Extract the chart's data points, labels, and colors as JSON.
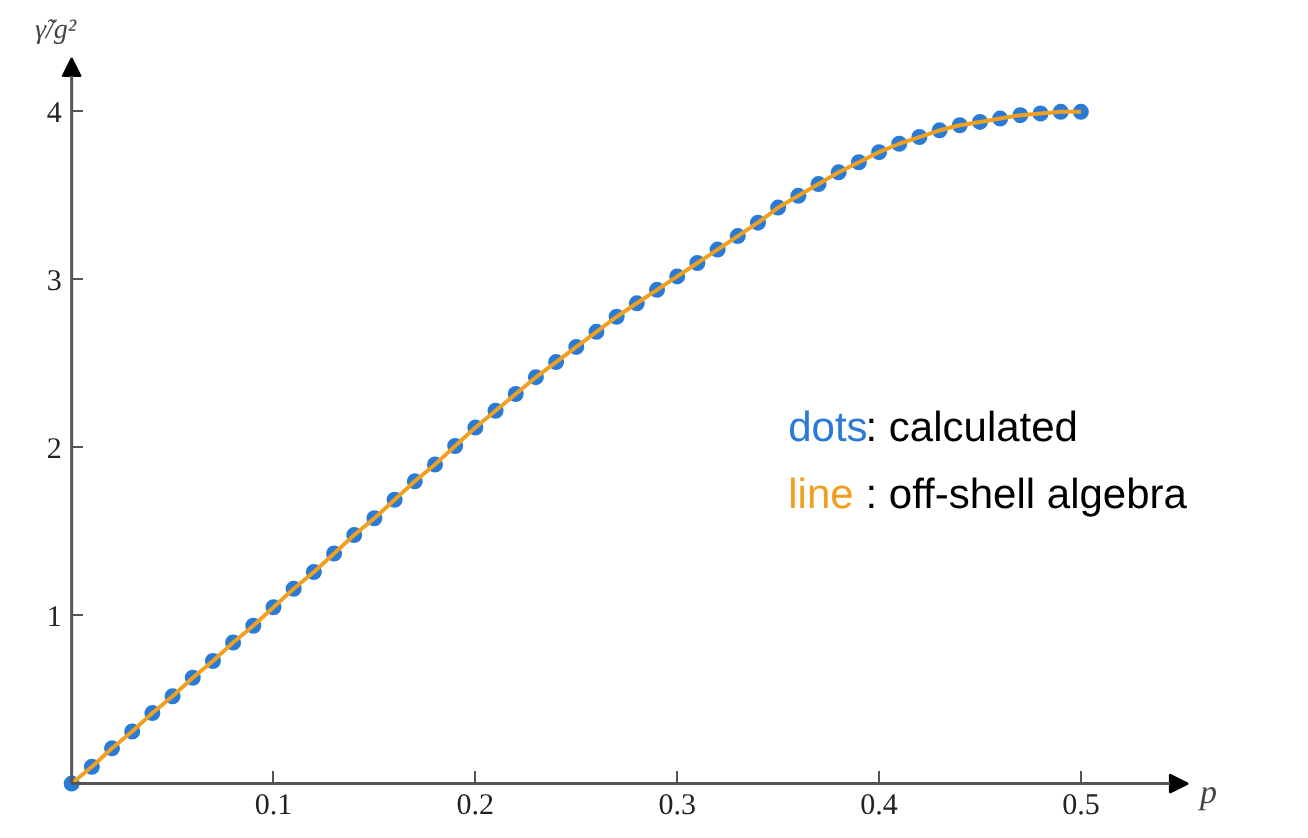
{
  "chart_data": {
    "type": "line",
    "xlabel": "p",
    "ylabel": "γ̃/g²",
    "xlim": [
      0,
      0.553
    ],
    "ylim": [
      0,
      4.32
    ],
    "xticks": [
      0.1,
      0.2,
      0.3,
      0.4,
      0.5
    ],
    "yticks": [
      1,
      2,
      3,
      4
    ],
    "grid": false,
    "legend": "right",
    "annotations": [
      ": calculated",
      ": off-shell algebra"
    ],
    "x": [
      0,
      0.01,
      0.02,
      0.03,
      0.04,
      0.05,
      0.06,
      0.07,
      0.08,
      0.09,
      0.1,
      0.11,
      0.12,
      0.13,
      0.14,
      0.15,
      0.16,
      0.17,
      0.18,
      0.19,
      0.2,
      0.21,
      0.22,
      0.23,
      0.24,
      0.25,
      0.26,
      0.27,
      0.28,
      0.29,
      0.3,
      0.31,
      0.32,
      0.33,
      0.34,
      0.35,
      0.36,
      0.37,
      0.38,
      0.39,
      0.4,
      0.41,
      0.42,
      0.43,
      0.44,
      0.45,
      0.46,
      0.47,
      0.48,
      0.49,
      0.5
    ],
    "series": [
      {
        "name": "dots",
        "type": "scatter",
        "marker": "circle",
        "color": "#2a7bd6",
        "values": [
          0,
          0.1,
          0.21,
          0.31,
          0.42,
          0.52,
          0.63,
          0.73,
          0.84,
          0.94,
          1.05,
          1.16,
          1.26,
          1.37,
          1.48,
          1.58,
          1.69,
          1.8,
          1.9,
          2.01,
          2.12,
          2.22,
          2.32,
          2.42,
          2.51,
          2.6,
          2.69,
          2.78,
          2.86,
          2.94,
          3.02,
          3.1,
          3.18,
          3.26,
          3.34,
          3.43,
          3.5,
          3.57,
          3.64,
          3.7,
          3.76,
          3.81,
          3.85,
          3.89,
          3.92,
          3.94,
          3.96,
          3.98,
          3.99,
          4.0,
          4.0
        ]
      },
      {
        "name": "line",
        "type": "line",
        "color": "#f0a020",
        "values": [
          0,
          0.1,
          0.21,
          0.31,
          0.42,
          0.52,
          0.63,
          0.73,
          0.84,
          0.94,
          1.05,
          1.16,
          1.26,
          1.37,
          1.48,
          1.58,
          1.69,
          1.8,
          1.9,
          2.01,
          2.12,
          2.22,
          2.32,
          2.42,
          2.51,
          2.6,
          2.69,
          2.78,
          2.86,
          2.94,
          3.02,
          3.1,
          3.18,
          3.26,
          3.34,
          3.43,
          3.5,
          3.57,
          3.64,
          3.7,
          3.76,
          3.81,
          3.85,
          3.89,
          3.92,
          3.94,
          3.96,
          3.98,
          3.99,
          4.0,
          4.0
        ]
      }
    ]
  }
}
